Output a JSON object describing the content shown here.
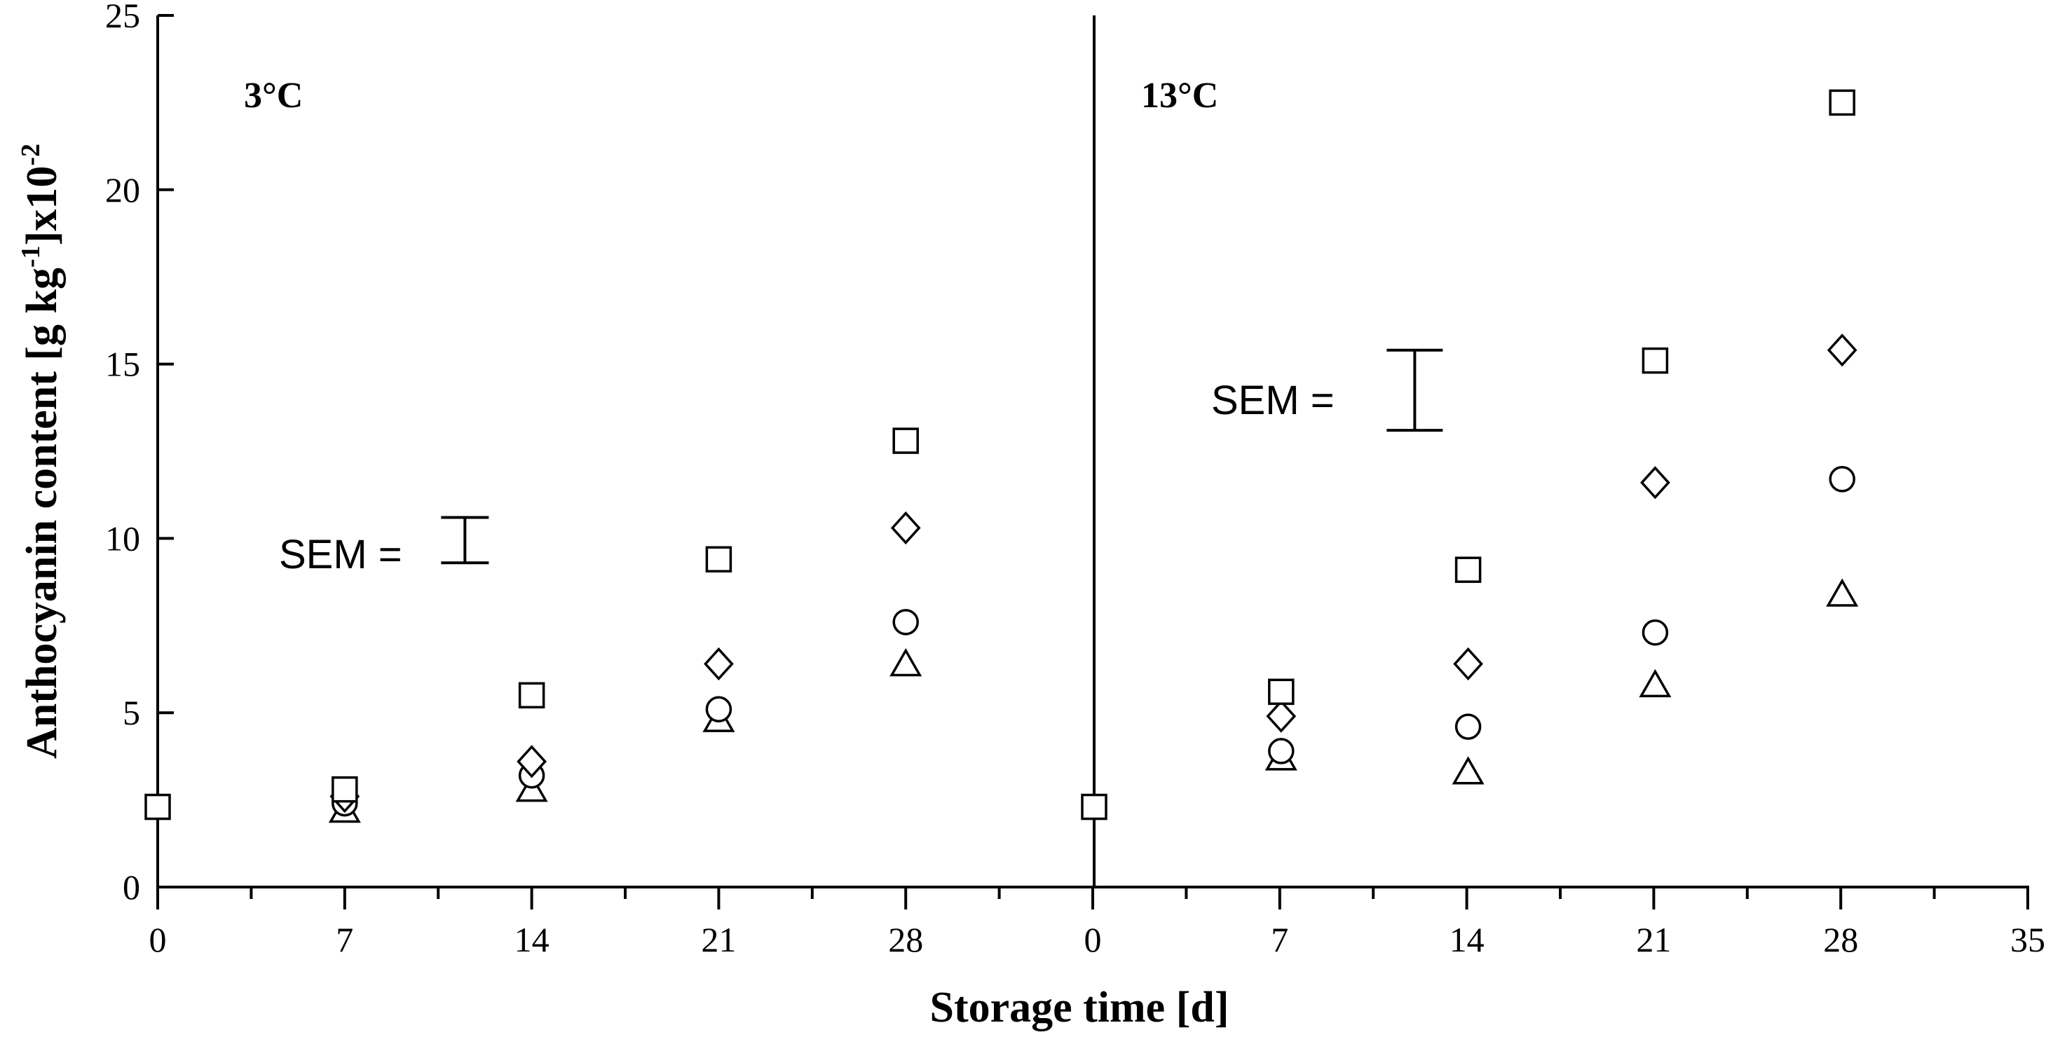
{
  "chart_data": {
    "type": "scatter",
    "ylabel_main": "Anthocyanin content [g kg",
    "ylabel_sup": "-1",
    "ylabel_tail": "]x10",
    "ylabel_exp": "-2",
    "xlabel": "Storage time [d]",
    "ylim": [
      0,
      25
    ],
    "yticks": [
      "0",
      "5",
      "10",
      "15",
      "20",
      "25"
    ],
    "xtick_labels": [
      "0",
      "7",
      "14",
      "21",
      "28",
      "0",
      "7",
      "14",
      "21",
      "28",
      "35"
    ],
    "sem_label": "SEM =",
    "panels": [
      {
        "label": "3°C",
        "xlim": [
          0,
          35
        ],
        "sem": {
          "x": 11.5,
          "low": 9.3,
          "high": 10.6
        },
        "series": [
          {
            "marker": "square",
            "x": [
              0,
              7,
              14,
              21,
              28
            ],
            "y": [
              2.3,
              2.8,
              5.5,
              9.4,
              12.8
            ]
          },
          {
            "marker": "diamond",
            "x": [
              7,
              14,
              21,
              28
            ],
            "y": [
              2.6,
              3.6,
              6.4,
              10.3
            ]
          },
          {
            "marker": "circle",
            "x": [
              7,
              14,
              21,
              28
            ],
            "y": [
              2.4,
              3.2,
              5.1,
              7.6
            ]
          },
          {
            "marker": "triangle",
            "x": [
              7,
              14,
              21,
              28
            ],
            "y": [
              2.2,
              2.8,
              4.8,
              6.4
            ]
          }
        ]
      },
      {
        "label": "13°C",
        "xlim": [
          0,
          35
        ],
        "sem": {
          "x": 12,
          "low": 13.1,
          "high": 15.4
        },
        "series": [
          {
            "marker": "square",
            "x": [
              0,
              7,
              14,
              21,
              28
            ],
            "y": [
              2.3,
              5.6,
              9.1,
              15.1,
              22.5
            ]
          },
          {
            "marker": "diamond",
            "x": [
              7,
              14,
              21,
              28
            ],
            "y": [
              4.9,
              6.4,
              11.6,
              15.4
            ]
          },
          {
            "marker": "circle",
            "x": [
              7,
              14,
              21,
              28
            ],
            "y": [
              3.9,
              4.6,
              7.3,
              11.7
            ]
          },
          {
            "marker": "triangle",
            "x": [
              7,
              14,
              21,
              28
            ],
            "y": [
              3.7,
              3.3,
              5.8,
              8.4
            ]
          }
        ]
      }
    ]
  }
}
